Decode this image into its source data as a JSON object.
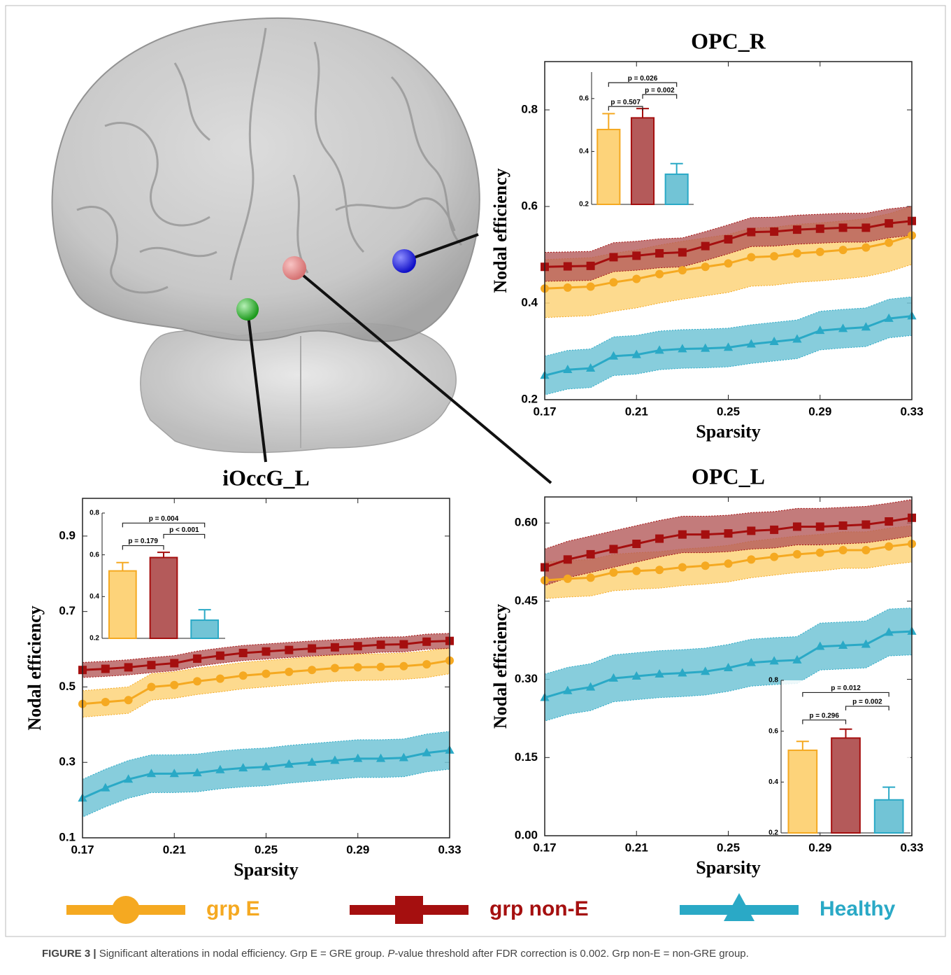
{
  "legend": {
    "items": [
      {
        "name": "grp E",
        "color": "#f5a921",
        "band_color": "#fdd37a",
        "marker": "circle"
      },
      {
        "name": "grp non-E",
        "color": "#a50f0f",
        "band_color": "#b45a5a",
        "marker": "square"
      },
      {
        "name": "Healthy",
        "color": "#2aa9c6",
        "band_color": "#72c4d6",
        "marker": "triangle"
      }
    ]
  },
  "caption": {
    "label": "FIGURE 3 |",
    "text": "Significant alterations in nodal efficiency. Grp E = GRE group.",
    "italic": "P",
    "rest": "-value threshold after FDR correction is 0.002. Grp non-E = non-GRE group."
  },
  "chart_data": [
    {
      "type": "line",
      "title": "OPC_R",
      "xlabel": "Sparsity",
      "ylabel": "Nodal efficiency",
      "x": [
        0.17,
        0.18,
        0.19,
        0.2,
        0.21,
        0.22,
        0.23,
        0.24,
        0.25,
        0.26,
        0.27,
        0.28,
        0.29,
        0.3,
        0.31,
        0.32,
        0.33
      ],
      "xlim": [
        0.17,
        0.33
      ],
      "xticks": [
        0.17,
        0.21,
        0.25,
        0.29,
        0.33
      ],
      "ylim": [
        0.2,
        0.9
      ],
      "yticks": [
        0.2,
        0.4,
        0.6,
        0.8
      ],
      "series": [
        {
          "values": [
            0.43,
            0.432,
            0.434,
            0.443,
            0.45,
            0.46,
            0.468,
            0.475,
            0.482,
            0.495,
            0.497,
            0.503,
            0.506,
            0.51,
            0.515,
            0.525,
            0.54
          ],
          "band": 0.06
        },
        {
          "values": [
            0.475,
            0.476,
            0.477,
            0.495,
            0.498,
            0.503,
            0.505,
            0.518,
            0.532,
            0.547,
            0.548,
            0.552,
            0.554,
            0.556,
            0.556,
            0.565,
            0.57
          ],
          "band": 0.03
        },
        {
          "values": [
            0.25,
            0.262,
            0.265,
            0.29,
            0.293,
            0.302,
            0.305,
            0.306,
            0.308,
            0.315,
            0.32,
            0.325,
            0.343,
            0.347,
            0.35,
            0.368,
            0.373
          ],
          "band": 0.04
        }
      ],
      "inset": {
        "type": "bar",
        "ylim": [
          0.2,
          0.7
        ],
        "yticks": [
          0.2,
          0.4,
          0.6
        ],
        "values": [
          0.483,
          0.527,
          0.314
        ],
        "errors": [
          0.06,
          0.035,
          0.04
        ],
        "comparisons": [
          "p = 0.507",
          "p = 0.002",
          "p = 0.026"
        ]
      }
    },
    {
      "type": "line",
      "title": "iOccG_L",
      "xlabel": "Sparsity",
      "ylabel": "Nodal efficiency",
      "x": [
        0.17,
        0.18,
        0.19,
        0.2,
        0.21,
        0.22,
        0.23,
        0.24,
        0.25,
        0.26,
        0.27,
        0.28,
        0.29,
        0.3,
        0.31,
        0.32,
        0.33
      ],
      "xlim": [
        0.17,
        0.33
      ],
      "xticks": [
        0.17,
        0.21,
        0.25,
        0.29,
        0.33
      ],
      "ylim": [
        0.1,
        1.0
      ],
      "yticks": [
        0.1,
        0.3,
        0.5,
        0.7,
        0.9
      ],
      "series": [
        {
          "values": [
            0.455,
            0.46,
            0.465,
            0.5,
            0.505,
            0.515,
            0.522,
            0.53,
            0.535,
            0.54,
            0.545,
            0.55,
            0.552,
            0.553,
            0.555,
            0.56,
            0.57
          ],
          "band": 0.035
        },
        {
          "values": [
            0.545,
            0.548,
            0.552,
            0.558,
            0.563,
            0.575,
            0.583,
            0.59,
            0.594,
            0.598,
            0.602,
            0.605,
            0.608,
            0.612,
            0.613,
            0.62,
            0.622
          ],
          "band": 0.02
        },
        {
          "values": [
            0.205,
            0.232,
            0.255,
            0.27,
            0.27,
            0.272,
            0.28,
            0.285,
            0.288,
            0.295,
            0.3,
            0.305,
            0.31,
            0.31,
            0.312,
            0.325,
            0.332
          ],
          "band": 0.05
        }
      ],
      "inset": {
        "type": "bar",
        "ylim": [
          0.2,
          0.8
        ],
        "yticks": [
          0.2,
          0.4,
          0.6,
          0.8
        ],
        "values": [
          0.523,
          0.587,
          0.287
        ],
        "errors": [
          0.04,
          0.025,
          0.05
        ],
        "comparisons": [
          "p = 0.179",
          "p < 0.001",
          "p = 0.004"
        ]
      }
    },
    {
      "type": "line",
      "title": "OPC_L",
      "xlabel": "Sparsity",
      "ylabel": "Nodal efficiency",
      "x": [
        0.17,
        0.18,
        0.19,
        0.2,
        0.21,
        0.22,
        0.23,
        0.24,
        0.25,
        0.26,
        0.27,
        0.28,
        0.29,
        0.3,
        0.31,
        0.32,
        0.33
      ],
      "xlim": [
        0.17,
        0.33
      ],
      "xticks": [
        0.17,
        0.21,
        0.25,
        0.29,
        0.33
      ],
      "ylim": [
        0,
        0.65
      ],
      "yticks": [
        {
          "value": 0,
          "label": "0.00"
        },
        0.15,
        {
          "value": 0.3,
          "label": "0.30"
        },
        0.45,
        {
          "value": 0.6,
          "label": "0.60"
        }
      ],
      "series": [
        {
          "values": [
            0.49,
            0.493,
            0.495,
            0.505,
            0.508,
            0.51,
            0.515,
            0.518,
            0.522,
            0.53,
            0.535,
            0.54,
            0.543,
            0.548,
            0.548,
            0.555,
            0.56
          ],
          "band": 0.035
        },
        {
          "values": [
            0.515,
            0.53,
            0.54,
            0.55,
            0.56,
            0.57,
            0.578,
            0.578,
            0.58,
            0.585,
            0.587,
            0.593,
            0.593,
            0.595,
            0.597,
            0.603,
            0.61
          ],
          "band": 0.035
        },
        {
          "values": [
            0.265,
            0.278,
            0.285,
            0.302,
            0.306,
            0.31,
            0.312,
            0.315,
            0.322,
            0.332,
            0.335,
            0.337,
            0.363,
            0.365,
            0.367,
            0.39,
            0.392
          ],
          "band": 0.045
        }
      ],
      "inset": {
        "type": "bar",
        "ylim": [
          0.2,
          0.8
        ],
        "yticks": [
          0.2,
          0.4,
          0.6,
          0.8
        ],
        "values": [
          0.525,
          0.573,
          0.33
        ],
        "errors": [
          0.035,
          0.035,
          0.05
        ],
        "comparisons": [
          "p = 0.296",
          "p = 0.002",
          "p = 0.012"
        ]
      }
    }
  ]
}
